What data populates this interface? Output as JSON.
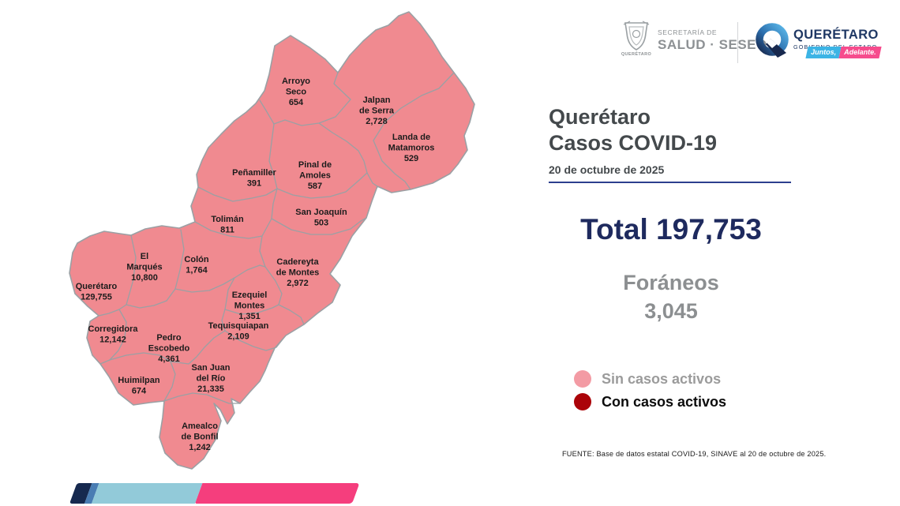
{
  "header": {
    "salud_logo": {
      "secretaria": "SECRETARÍA DE",
      "salud": "SALUD · SESEQ",
      "crest_caption": "QUERÉTARO"
    },
    "gobierno_logo": {
      "name": "QUERÉTARO",
      "subtitle": "GOBIERNO DEL ESTADO",
      "slogan_left": "Juntos,",
      "slogan_right": "Adelante.",
      "slogan_left_color": "#3cb4e5",
      "slogan_right_color": "#f64c8d",
      "navy": "#1f3864"
    }
  },
  "panel": {
    "title_line1": "Querétaro",
    "title_line2": "Casos COVID-19",
    "date": "20 de octubre de 2025",
    "total_label": "Total",
    "total_value": "197,753",
    "foraneos_label": "Foráneos",
    "foraneos_value": "3,045",
    "legend": [
      {
        "label": "Sin casos activos",
        "color": "#f39ba4",
        "emphasis": false
      },
      {
        "label": "Con casos activos",
        "color": "#ab0309",
        "emphasis": true
      }
    ],
    "source": "FUENTE: Base de datos estatal COVID-19,  SINAVE al 20 de octubre de 2025."
  },
  "map": {
    "fill_color": "#f08a90",
    "border_color": "#9ba0a4",
    "municipalities": [
      {
        "id": "arroyo-seco",
        "name_lines": [
          "Arroyo",
          "Seco"
        ],
        "cases": "654"
      },
      {
        "id": "jalpan",
        "name_lines": [
          "Jalpan",
          "de Serra"
        ],
        "cases": "2,728"
      },
      {
        "id": "landa",
        "name_lines": [
          "Landa de",
          "Matamoros"
        ],
        "cases": "529"
      },
      {
        "id": "penamiller",
        "name_lines": [
          "Peñamiller"
        ],
        "cases": "391"
      },
      {
        "id": "pinal",
        "name_lines": [
          "Pinal de",
          "Amoles"
        ],
        "cases": "587"
      },
      {
        "id": "toliman",
        "name_lines": [
          "Tolimán"
        ],
        "cases": "811"
      },
      {
        "id": "san-joaquin",
        "name_lines": [
          "San Joaquín"
        ],
        "cases": "503"
      },
      {
        "id": "el-marques",
        "name_lines": [
          "El",
          "Marqués"
        ],
        "cases": "10,800"
      },
      {
        "id": "colon",
        "name_lines": [
          "Colón"
        ],
        "cases": "1,764"
      },
      {
        "id": "cadereyta",
        "name_lines": [
          "Cadereyta",
          "de Montes"
        ],
        "cases": "2,972"
      },
      {
        "id": "queretaro",
        "name_lines": [
          "Querétaro"
        ],
        "cases": "129,755"
      },
      {
        "id": "ezequiel-montes",
        "name_lines": [
          "Ezequiel",
          "Montes"
        ],
        "cases": "1,351"
      },
      {
        "id": "tequisquiapan",
        "name_lines": [
          "Tequisquiapan"
        ],
        "cases": "2,109"
      },
      {
        "id": "corregidora",
        "name_lines": [
          "Corregidora"
        ],
        "cases": "12,142"
      },
      {
        "id": "pedro-escobedo",
        "name_lines": [
          "Pedro",
          "Escobedo"
        ],
        "cases": "4,361"
      },
      {
        "id": "huimilpan",
        "name_lines": [
          "Huimilpan"
        ],
        "cases": "674"
      },
      {
        "id": "san-juan-del-rio",
        "name_lines": [
          "San Juan",
          "del Río"
        ],
        "cases": "21,335"
      },
      {
        "id": "amealco",
        "name_lines": [
          "Amealco",
          "de Bonfil"
        ],
        "cases": "1,242"
      }
    ]
  },
  "footer_bar": {
    "colors": [
      "#16294f",
      "#4a7db3",
      "#92cad9",
      "#f53e7d"
    ]
  }
}
